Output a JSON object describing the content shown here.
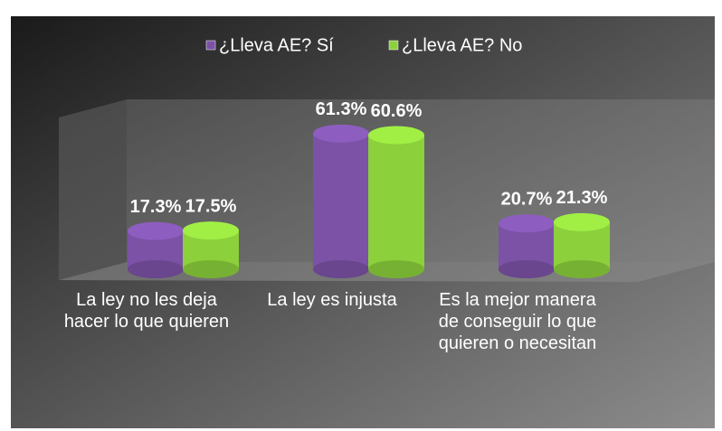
{
  "chart_data": {
    "type": "bar",
    "categories": [
      "La ley no les deja hacer lo que quieren",
      "La ley es injusta",
      "Es la mejor manera de conseguir lo que quieren o necesitan"
    ],
    "series": [
      {
        "name": "¿Lleva AE? Sí",
        "color": "#7b52a6",
        "values": [
          17.3,
          61.3,
          20.7
        ],
        "value_labels": [
          "17.3%",
          "61.3%",
          "20.7%"
        ]
      },
      {
        "name": "¿Lleva AE? No",
        "color": "#8cd03c",
        "values": [
          17.5,
          60.6,
          21.3
        ],
        "value_labels": [
          "17.5%",
          "60.6%",
          "21.3%"
        ]
      }
    ],
    "legend": "top"
  }
}
